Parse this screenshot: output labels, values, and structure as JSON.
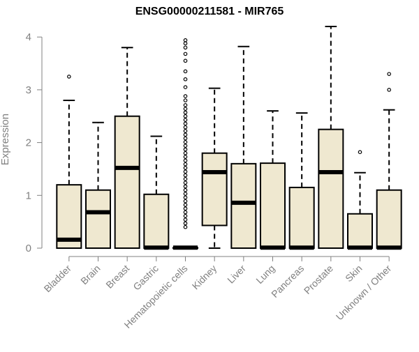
{
  "chart_data": {
    "type": "boxplot",
    "title": "ENSG00000211581 - MIR765",
    "xlabel": "",
    "ylabel": "Expression",
    "ylim": [
      0,
      4.2
    ],
    "yticks": [
      0,
      1,
      2,
      3,
      4
    ],
    "grid": false,
    "legend": "none",
    "colors": {
      "box_fill": "#efe8d0",
      "stroke": "#000000",
      "axis_text": "#808080"
    },
    "categories": [
      "Bladder",
      "Brain",
      "Breast",
      "Gastric",
      "Hematopoietic cells",
      "Kidney",
      "Liver",
      "Lung",
      "Pancreas",
      "Prostate",
      "Skin",
      "Unknown / Other"
    ],
    "boxes": [
      {
        "category": "Bladder",
        "min": 0,
        "q1": 0,
        "median": 0.16,
        "q3": 1.2,
        "max": 2.8,
        "outliers": [
          3.25
        ]
      },
      {
        "category": "Brain",
        "min": 0,
        "q1": 0,
        "median": 0.68,
        "q3": 1.1,
        "max": 2.38,
        "outliers": []
      },
      {
        "category": "Breast",
        "min": 0,
        "q1": 0,
        "median": 1.52,
        "q3": 2.5,
        "max": 3.8,
        "outliers": []
      },
      {
        "category": "Gastric",
        "min": 0,
        "q1": 0,
        "median": 0.01,
        "q3": 1.02,
        "max": 2.12,
        "outliers": []
      },
      {
        "category": "Hematopoietic cells",
        "min": 0,
        "q1": 0,
        "median": 0.01,
        "q3": 0.01,
        "max": 0.01,
        "outliers": [
          0.4,
          0.47,
          0.54,
          0.61,
          0.68,
          0.75,
          0.82,
          0.89,
          0.96,
          1.03,
          1.1,
          1.17,
          1.24,
          1.31,
          1.38,
          1.45,
          1.52,
          1.59,
          1.66,
          1.73,
          1.8,
          1.87,
          1.94,
          2.01,
          2.08,
          2.15,
          2.22,
          2.29,
          2.36,
          2.43,
          2.5,
          2.57,
          2.64,
          2.71,
          2.8,
          2.88,
          3.05,
          3.2,
          3.35,
          3.55,
          3.68,
          3.8,
          3.88,
          3.94
        ]
      },
      {
        "category": "Kidney",
        "min": 0,
        "q1": 0.43,
        "median": 1.44,
        "q3": 1.8,
        "max": 3.03,
        "outliers": []
      },
      {
        "category": "Liver",
        "min": 0,
        "q1": 0,
        "median": 0.86,
        "q3": 1.6,
        "max": 3.82,
        "outliers": []
      },
      {
        "category": "Lung",
        "min": 0,
        "q1": 0,
        "median": 0.01,
        "q3": 1.61,
        "max": 2.6,
        "outliers": []
      },
      {
        "category": "Pancreas",
        "min": 0,
        "q1": 0,
        "median": 0.01,
        "q3": 1.15,
        "max": 2.56,
        "outliers": []
      },
      {
        "category": "Prostate",
        "min": 0,
        "q1": 0,
        "median": 1.44,
        "q3": 2.25,
        "max": 4.2,
        "outliers": []
      },
      {
        "category": "Skin",
        "min": 0,
        "q1": 0,
        "median": 0.01,
        "q3": 0.65,
        "max": 1.43,
        "outliers": [
          1.82
        ]
      },
      {
        "category": "Unknown / Other",
        "min": 0,
        "q1": 0,
        "median": 0.01,
        "q3": 1.1,
        "max": 2.62,
        "outliers": [
          3.0,
          3.3
        ]
      }
    ]
  }
}
